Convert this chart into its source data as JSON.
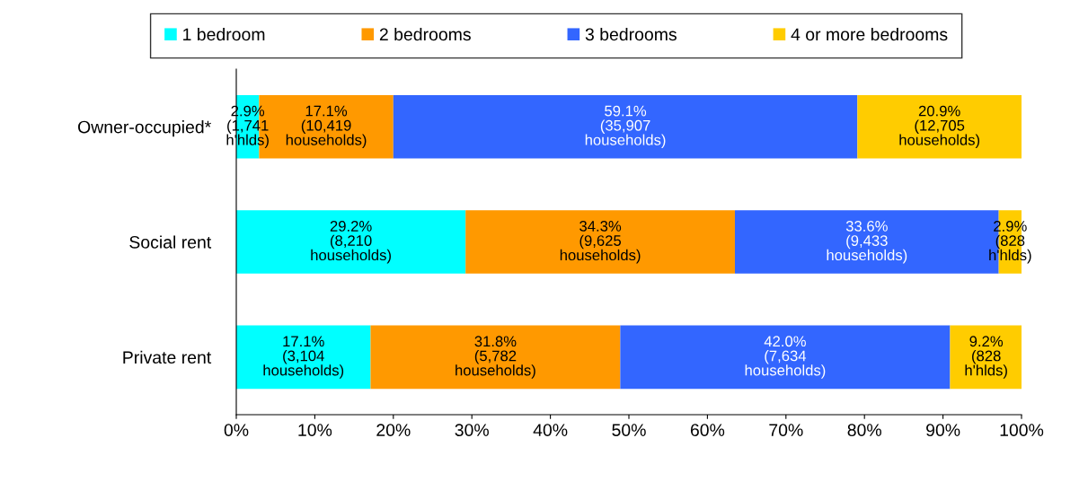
{
  "chart_data": {
    "type": "bar",
    "orientation": "horizontal",
    "stacked": true,
    "categories": [
      "Owner-occupied*",
      "Social rent",
      "Private rent"
    ],
    "series": [
      {
        "name": "1 bedroom",
        "color": "#00ffff",
        "values": [
          2.9,
          29.2,
          17.1
        ],
        "value_labels": [
          "2.9%\n(1,741\nh'hlds)",
          "29.2%\n(8,210\nhouseholds)",
          "17.1%\n(3,104\nhouseholds)"
        ]
      },
      {
        "name": "2 bedrooms",
        "color": "#ff9900",
        "values": [
          17.1,
          34.3,
          31.8
        ],
        "value_labels": [
          "17.1%\n(10,419\nhouseholds)",
          "34.3%\n(9,625\nhouseholds)",
          "31.8%\n(5,782\nhouseholds)"
        ]
      },
      {
        "name": "3 bedrooms",
        "color": "#3366ff",
        "values": [
          59.1,
          33.6,
          42.0
        ],
        "value_labels": [
          "59.1%\n(35,907\nhouseholds)",
          "33.6%\n(9,433\nhouseholds)",
          "42.0%\n(7,634\nhouseholds)"
        ]
      },
      {
        "name": "4 or more bedrooms",
        "color": "#ffcc00",
        "values": [
          20.9,
          2.9,
          9.2
        ],
        "value_labels": [
          "20.9%\n(12,705\nhouseholds)",
          "2.9%\n(828\nh'hlds)",
          "9.2%\n(828\nh'hlds)"
        ]
      }
    ],
    "xlim": [
      0,
      100
    ],
    "xticks": [
      {
        "value": 0,
        "label": "0%"
      },
      {
        "value": 10,
        "label": "10%"
      },
      {
        "value": 20,
        "label": "20%"
      },
      {
        "value": 30,
        "label": "30%"
      },
      {
        "value": 40,
        "label": "40%"
      },
      {
        "value": 50,
        "label": "50%"
      },
      {
        "value": 60,
        "label": "60%"
      },
      {
        "value": 70,
        "label": "70%"
      },
      {
        "value": 80,
        "label": "80%"
      },
      {
        "value": 90,
        "label": "90%"
      },
      {
        "value": 100,
        "label": "100%"
      }
    ],
    "legend": "top",
    "grid": false
  }
}
